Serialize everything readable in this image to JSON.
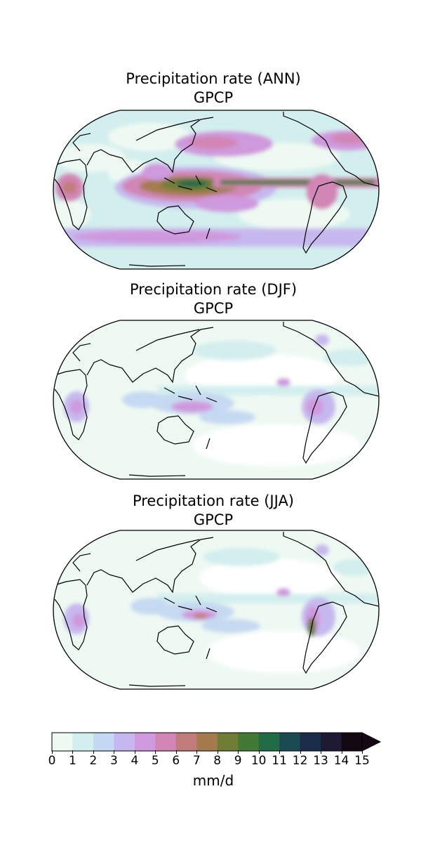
{
  "panels": [
    {
      "title_line1": "Precipitation rate (ANN)",
      "title_line2": "GPCP",
      "season": "ANN"
    },
    {
      "title_line1": "Precipitation rate (DJF)",
      "title_line2": "GPCP",
      "season": "DJF"
    },
    {
      "title_line1": "Precipitation rate (JJA)",
      "title_line2": "GPCP",
      "season": "JJA"
    }
  ],
  "colorbar": {
    "ticks": [
      "0",
      "1",
      "2",
      "3",
      "4",
      "5",
      "6",
      "7",
      "8",
      "9",
      "10",
      "11",
      "12",
      "13",
      "14",
      "15"
    ],
    "colors": [
      "#eff9f3",
      "#d3eeee",
      "#c6d9f2",
      "#c6b8ee",
      "#cf99dd",
      "#d186b5",
      "#c27b7b",
      "#a57b4e",
      "#6f7d37",
      "#427935",
      "#226b47",
      "#1b4a52",
      "#1c2d4b",
      "#1e1a34",
      "#140913"
    ],
    "units": "mm/d",
    "extend": "max"
  },
  "colors": {
    "ocean_base": "#ffffff",
    "coastline": "#000000",
    "frame": "#000000"
  }
}
